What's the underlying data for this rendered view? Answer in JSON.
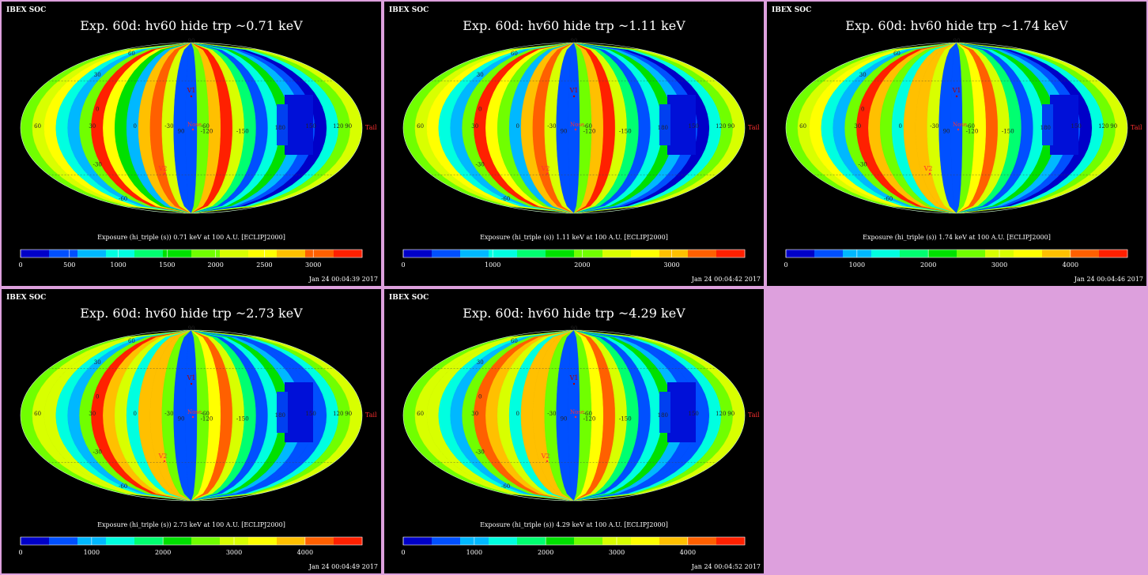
{
  "colors": {
    "page_bg": "#dda0dd",
    "panel_bg": "#000000",
    "label_red": "#ff3030"
  },
  "colormap": [
    "#0000c8",
    "#0050ff",
    "#00b8ff",
    "#00ffe0",
    "#00ff70",
    "#00e000",
    "#70ff00",
    "#d8ff00",
    "#ffff00",
    "#ffc000",
    "#ff6000",
    "#ff2000"
  ],
  "map_labels": {
    "lat_labels": [
      "30",
      "0",
      "-30",
      "60",
      "-60",
      "90"
    ],
    "lon_labels": [
      "60",
      "30",
      "0",
      "-30",
      "-60",
      "90",
      "-120",
      "-150",
      "180",
      "150",
      "120",
      "90"
    ],
    "points": {
      "v1": "V1",
      "v2": "V2",
      "nose": "Nose",
      "tail": "Tail"
    }
  },
  "chart_data": [
    {
      "type": "heatmap",
      "header": "IBEX SOC",
      "title": "Exp.   60d: hv60 hide trp ~0.71 keV",
      "colorbar_label": "Exposure (hi_triple (s))  0.71 keV at 100 A.U. [ECLIPJ2000]",
      "colorbar_ticks": [
        "0",
        "500",
        "1000",
        "1500",
        "2000",
        "2500",
        "3000"
      ],
      "colorbar_tick_fracs": [
        0.0,
        0.143,
        0.286,
        0.429,
        0.571,
        0.714,
        0.857
      ],
      "timestamp": "Jan 24 00:04:39 2017",
      "strip_levels": [
        0.55,
        0.62,
        0.7,
        0.3,
        0.2,
        0.55,
        0.95,
        0.68,
        0.45,
        0.2,
        0.8,
        0.85,
        0.6,
        0.15,
        0.1,
        0.5,
        0.75,
        0.92,
        0.6,
        0.4,
        0.15,
        0.3,
        0.45,
        0.2,
        0.1,
        0.08,
        0.25,
        0.5,
        0.6
      ]
    },
    {
      "type": "heatmap",
      "header": "IBEX SOC",
      "title": "Exp.   60d: hv60 hide trp ~1.11 keV",
      "colorbar_label": "Exposure (hi_triple (s))  1.11 keV at 100 A.U. [ECLIPJ2000]",
      "colorbar_ticks": [
        "0",
        "1000",
        "2000",
        "3000"
      ],
      "colorbar_tick_fracs": [
        0.0,
        0.262,
        0.524,
        0.786
      ],
      "timestamp": "Jan 24 00:04:42 2017",
      "strip_levels": [
        0.55,
        0.62,
        0.7,
        0.3,
        0.2,
        0.55,
        0.95,
        0.72,
        0.5,
        0.2,
        0.82,
        0.85,
        0.6,
        0.15,
        0.1,
        0.5,
        0.75,
        0.92,
        0.6,
        0.4,
        0.15,
        0.3,
        0.45,
        0.2,
        0.1,
        0.08,
        0.25,
        0.5,
        0.6
      ]
    },
    {
      "type": "heatmap",
      "header": "IBEX SOC",
      "title": "Exp.   60d: hv60 hide trp ~1.74 keV",
      "colorbar_label": "Exposure (hi_triple (s))  1.74 keV at 100 A.U. [ECLIPJ2000]",
      "colorbar_ticks": [
        "0",
        "1000",
        "2000",
        "3000",
        "4000"
      ],
      "colorbar_tick_fracs": [
        0.0,
        0.208,
        0.417,
        0.625,
        0.833
      ],
      "timestamp": "Jan 24 00:04:46 2017",
      "strip_levels": [
        0.55,
        0.62,
        0.7,
        0.3,
        0.2,
        0.55,
        0.95,
        0.75,
        0.55,
        0.25,
        0.8,
        0.82,
        0.6,
        0.15,
        0.1,
        0.5,
        0.72,
        0.9,
        0.6,
        0.4,
        0.15,
        0.3,
        0.45,
        0.2,
        0.1,
        0.08,
        0.25,
        0.5,
        0.6
      ]
    },
    {
      "type": "heatmap",
      "header": "IBEX SOC",
      "title": "Exp.   60d: hv60 hide trp ~2.73 keV",
      "colorbar_label": "Exposure (hi_triple (s))  2.73 keV at 100 A.U. [ECLIPJ2000]",
      "colorbar_ticks": [
        "0",
        "1000",
        "2000",
        "3000",
        "4000"
      ],
      "colorbar_tick_fracs": [
        0.0,
        0.208,
        0.417,
        0.625,
        0.833
      ],
      "timestamp": "Jan 24 00:04:49 2017",
      "strip_levels": [
        0.55,
        0.6,
        0.65,
        0.3,
        0.2,
        0.5,
        0.92,
        0.78,
        0.6,
        0.25,
        0.75,
        0.8,
        0.58,
        0.15,
        0.12,
        0.5,
        0.7,
        0.88,
        0.6,
        0.4,
        0.15,
        0.3,
        0.45,
        0.2,
        0.1,
        0.1,
        0.25,
        0.5,
        0.6
      ]
    },
    {
      "type": "heatmap",
      "header": "IBEX SOC",
      "title": "Exp.   60d: hv60 hide trp ~4.29 keV",
      "colorbar_label": "Exposure (hi_triple (s))  4.29 keV at 100 A.U. [ECLIPJ2000]",
      "colorbar_ticks": [
        "0",
        "1000",
        "2000",
        "3000",
        "4000"
      ],
      "colorbar_tick_fracs": [
        0.0,
        0.208,
        0.417,
        0.625,
        0.833
      ],
      "timestamp": "Jan 24 00:04:52 2017",
      "strip_levels": [
        0.55,
        0.6,
        0.65,
        0.3,
        0.2,
        0.5,
        0.9,
        0.78,
        0.6,
        0.25,
        0.75,
        0.8,
        0.58,
        0.15,
        0.12,
        0.5,
        0.7,
        0.88,
        0.6,
        0.4,
        0.15,
        0.3,
        0.45,
        0.2,
        0.1,
        0.1,
        0.25,
        0.5,
        0.6
      ]
    }
  ]
}
